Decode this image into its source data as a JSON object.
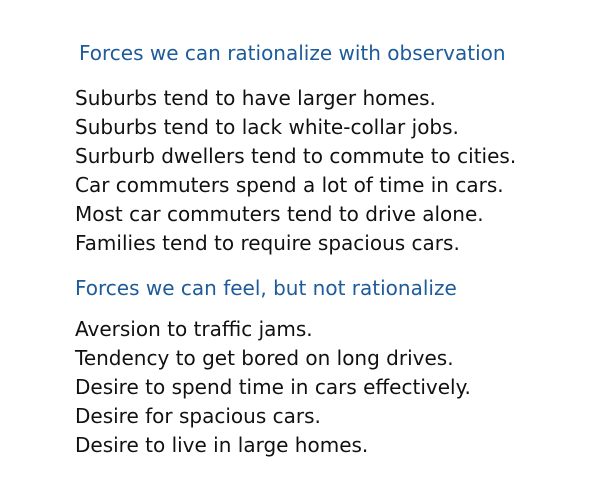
{
  "colors": {
    "heading": "#1d5b9a",
    "body_text": "#111111",
    "background": "#ffffff"
  },
  "sections": [
    {
      "heading": "Forces we can rationalize with observation",
      "items": [
        "Suburbs tend to have larger homes.",
        "Suburbs tend to lack white-collar jobs.",
        "Surburb dwellers tend to commute to cities.",
        "Car commuters spend a lot of time in cars.",
        "Most car commuters tend to drive alone.",
        "Families tend to require spacious cars."
      ]
    },
    {
      "heading": "Forces we can feel, but not rationalize",
      "items": [
        "Aversion to traffic jams.",
        "Tendency to get bored on long drives.",
        "Desire to spend time in cars effectively.",
        "Desire for spacious cars.",
        "Desire to live in large homes."
      ]
    }
  ]
}
